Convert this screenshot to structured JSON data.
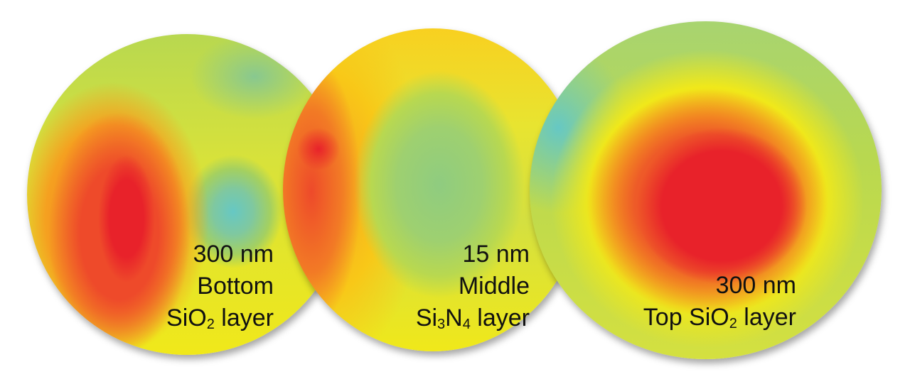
{
  "wafers": [
    {
      "thickness": "300 nm",
      "position": "Bottom",
      "material_base": "SiO",
      "material_sub": "2",
      "material_suffix": " layer"
    },
    {
      "thickness": "15 nm",
      "position": "Middle",
      "material_base": "Si",
      "material_sub": "3",
      "material_mid": "N",
      "material_sub2": "4",
      "material_suffix": " layer"
    },
    {
      "thickness": "300 nm",
      "line2_prefix": "Top SiO",
      "material_sub": "2",
      "material_suffix": " layer"
    }
  ],
  "colors": {
    "high": "#e8222a",
    "mid_high": "#f27a25",
    "mid": "#f0e81a",
    "mid_low": "#a4d060",
    "low": "#66c8c4"
  }
}
